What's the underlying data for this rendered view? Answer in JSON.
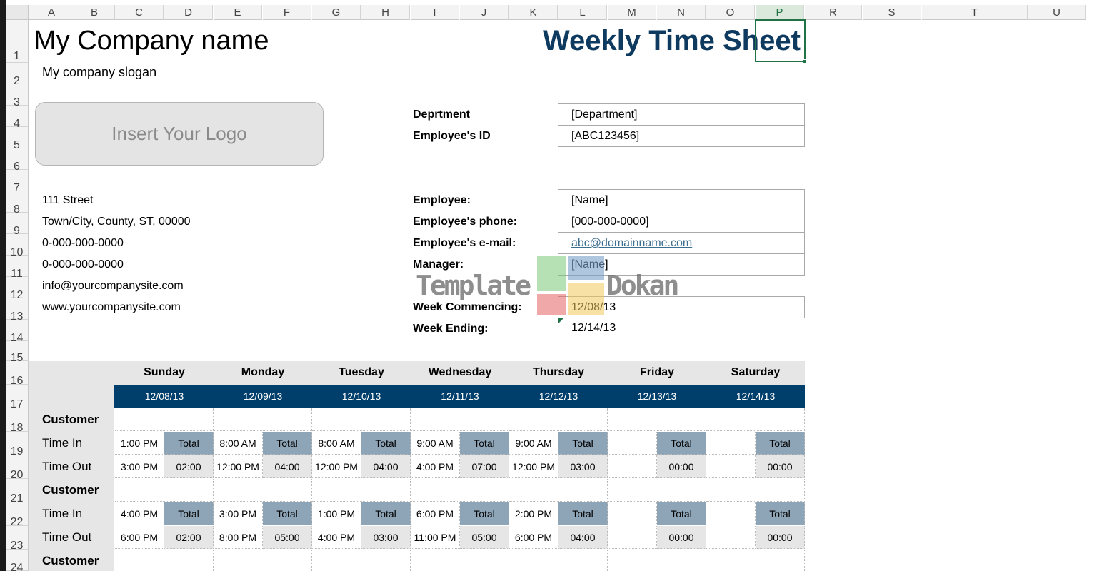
{
  "columns": [
    "A",
    "B",
    "C",
    "D",
    "E",
    "F",
    "G",
    "H",
    "I",
    "J",
    "K",
    "L",
    "M",
    "N",
    "O",
    "P",
    "R",
    "S",
    "T",
    "U"
  ],
  "rows": [
    "1",
    "2",
    "3",
    "4",
    "5",
    "6",
    "7",
    "8",
    "9",
    "10",
    "11",
    "12",
    "13",
    "14",
    "15",
    "16",
    "17",
    "18",
    "19",
    "20",
    "21",
    "22",
    "23",
    "24"
  ],
  "selected_column": "P",
  "company": {
    "name": "My Company name",
    "slogan": "My company slogan",
    "logo_placeholder": "Insert Your Logo",
    "address": [
      "111 Street",
      "Town/City, County, ST, 00000",
      "0-000-000-0000",
      "0-000-000-0000",
      "info@yourcompanysite.com",
      "www.yourcompanysite.com"
    ]
  },
  "title": "Weekly Time Sheet",
  "details": {
    "department_label": "Deprtment",
    "department_value": "[Department]",
    "id_label": "Employee's ID",
    "id_value": "[ABC123456]",
    "employee_label": "Employee:",
    "employee_value": "[Name]",
    "phone_label": "Employee's phone:",
    "phone_value": "[000-000-0000]",
    "email_label": "Employee's e-mail:",
    "email_value": "abc@domainname.com",
    "manager_label": "Manager:",
    "manager_value": "[Name]",
    "week_start_label": "Week Commencing:",
    "week_start_value": "12/08/13",
    "week_end_label": "Week Ending:",
    "week_end_value": "12/14/13"
  },
  "watermark": {
    "left": "Template",
    "right": "Dokan"
  },
  "days": [
    {
      "name": "Sunday",
      "date": "12/08/13"
    },
    {
      "name": "Monday",
      "date": "12/09/13"
    },
    {
      "name": "Tuesday",
      "date": "12/10/13"
    },
    {
      "name": "Wednesday",
      "date": "12/11/13"
    },
    {
      "name": "Thursday",
      "date": "12/12/13"
    },
    {
      "name": "Friday",
      "date": "12/13/13"
    },
    {
      "name": "Saturday",
      "date": "12/14/13"
    }
  ],
  "row_labels": {
    "customer": "Customer",
    "time_in": "Time In",
    "time_out": "Time Out",
    "total": "Total"
  },
  "blocks": [
    {
      "time_in": [
        "1:00 PM",
        "8:00 AM",
        "8:00 AM",
        "9:00 AM",
        "9:00 AM",
        "",
        ""
      ],
      "time_out": [
        "3:00 PM",
        "12:00 PM",
        "12:00 PM",
        "4:00 PM",
        "12:00 PM",
        "",
        ""
      ],
      "totals": [
        "02:00",
        "04:00",
        "04:00",
        "07:00",
        "03:00",
        "00:00",
        "00:00"
      ]
    },
    {
      "time_in": [
        "4:00 PM",
        "3:00 PM",
        "1:00 PM",
        "6:00 PM",
        "2:00 PM",
        "",
        ""
      ],
      "time_out": [
        "6:00 PM",
        "8:00 PM",
        "4:00 PM",
        "11:00 PM",
        "6:00 PM",
        "",
        ""
      ],
      "totals": [
        "02:00",
        "05:00",
        "03:00",
        "05:00",
        "04:00",
        "00:00",
        "00:00"
      ]
    }
  ],
  "colors": {
    "navy": "#003f6b",
    "total_bg": "#8ea5b8",
    "gray_bg": "#e6e6e6",
    "excel_green": "#217346"
  }
}
